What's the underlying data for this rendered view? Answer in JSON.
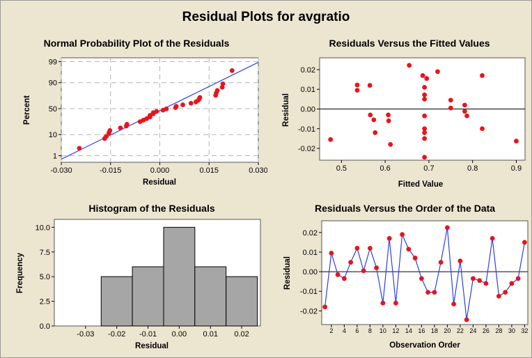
{
  "figure": {
    "title": "Residual Plots for avgratio"
  },
  "chart_data": [
    {
      "type": "scatter",
      "title": "Normal Probability Plot of the Residuals",
      "xlabel": "Residual",
      "ylabel": "Percent",
      "xlim": [
        -0.03,
        0.03
      ],
      "xticks": [
        "-0.030",
        "-0.015",
        "0.000",
        "0.015",
        "0.030"
      ],
      "xtick_values": [
        -0.03,
        -0.015,
        0,
        0.015,
        0.03
      ],
      "yticks": [
        "1",
        "10",
        "50",
        "90",
        "99"
      ],
      "ytick_values": [
        1,
        10,
        50,
        90,
        99
      ],
      "grid": true,
      "fit_line_color": "#2e3ee8",
      "point_color": "#e8141c",
      "points": [
        {
          "x": -0.0245,
          "p": 2.5
        },
        {
          "x": -0.0168,
          "p": 7.0
        },
        {
          "x": -0.0163,
          "p": 8.5
        },
        {
          "x": -0.0155,
          "p": 11.5
        },
        {
          "x": -0.0152,
          "p": 14.0
        },
        {
          "x": -0.012,
          "p": 17.0
        },
        {
          "x": -0.0102,
          "p": 19.5
        },
        {
          "x": -0.01,
          "p": 22.0
        },
        {
          "x": -0.006,
          "p": 26.0
        },
        {
          "x": -0.005,
          "p": 28.5
        },
        {
          "x": -0.004,
          "p": 31.0
        },
        {
          "x": -0.003,
          "p": 34.0
        },
        {
          "x": -0.003,
          "p": 37.0
        },
        {
          "x": -0.002,
          "p": 40.0
        },
        {
          "x": -0.002,
          "p": 42.0
        },
        {
          "x": -0.001,
          "p": 44.5
        },
        {
          "x": 0.001,
          "p": 47.0
        },
        {
          "x": 0.002,
          "p": 49.5
        },
        {
          "x": 0.0048,
          "p": 52.0
        },
        {
          "x": 0.005,
          "p": 54.5
        },
        {
          "x": 0.007,
          "p": 57.5
        },
        {
          "x": 0.0095,
          "p": 60.5
        },
        {
          "x": 0.011,
          "p": 63.0
        },
        {
          "x": 0.0117,
          "p": 66.0
        },
        {
          "x": 0.012,
          "p": 68.5
        },
        {
          "x": 0.0122,
          "p": 71.0
        },
        {
          "x": 0.017,
          "p": 74.5
        },
        {
          "x": 0.0172,
          "p": 78.0
        },
        {
          "x": 0.0175,
          "p": 81.5
        },
        {
          "x": 0.019,
          "p": 85.5
        },
        {
          "x": 0.0192,
          "p": 89.0
        },
        {
          "x": 0.022,
          "p": 97.0
        }
      ]
    },
    {
      "type": "scatter",
      "title": "Residuals Versus the Fitted Values",
      "xlabel": "Fitted Value",
      "ylabel": "Residual",
      "xlim": [
        0.45,
        0.92
      ],
      "ylim": [
        -0.026,
        0.026
      ],
      "xticks": [
        "0.5",
        "0.6",
        "0.7",
        "0.8",
        "0.9"
      ],
      "xtick_values": [
        0.5,
        0.6,
        0.7,
        0.8,
        0.9
      ],
      "yticks": [
        "0.02",
        "0.01",
        "0.00",
        "-0.01",
        "-0.02"
      ],
      "ytick_values": [
        0.02,
        0.01,
        0,
        -0.01,
        -0.02
      ],
      "reference_line": 0,
      "point_color": "#e8141c",
      "points": [
        {
          "x": 0.475,
          "y": -0.0155
        },
        {
          "x": 0.536,
          "y": 0.0122
        },
        {
          "x": 0.536,
          "y": 0.0095
        },
        {
          "x": 0.565,
          "y": 0.012
        },
        {
          "x": 0.566,
          "y": -0.003
        },
        {
          "x": 0.574,
          "y": -0.0055
        },
        {
          "x": 0.577,
          "y": -0.012
        },
        {
          "x": 0.607,
          "y": -0.003
        },
        {
          "x": 0.608,
          "y": -0.006
        },
        {
          "x": 0.612,
          "y": -0.018
        },
        {
          "x": 0.655,
          "y": 0.0222
        },
        {
          "x": 0.686,
          "y": 0.017
        },
        {
          "x": 0.69,
          "y": 0.011
        },
        {
          "x": 0.69,
          "y": 0.0072
        },
        {
          "x": 0.69,
          "y": 0.005
        },
        {
          "x": 0.69,
          "y": -0.0035
        },
        {
          "x": 0.69,
          "y": -0.01
        },
        {
          "x": 0.69,
          "y": -0.012
        },
        {
          "x": 0.69,
          "y": -0.015
        },
        {
          "x": 0.69,
          "y": -0.0245
        },
        {
          "x": 0.695,
          "y": 0.0155
        },
        {
          "x": 0.72,
          "y": 0.019
        },
        {
          "x": 0.75,
          "y": 0.0045
        },
        {
          "x": 0.75,
          "y": 0.0005
        },
        {
          "x": 0.782,
          "y": 0.002
        },
        {
          "x": 0.782,
          "y": -0.0012
        },
        {
          "x": 0.787,
          "y": -0.0035
        },
        {
          "x": 0.822,
          "y": 0.017
        },
        {
          "x": 0.822,
          "y": -0.01
        },
        {
          "x": 0.9,
          "y": -0.0163
        }
      ]
    },
    {
      "type": "bar",
      "title": "Histogram of the Residuals",
      "xlabel": "Residual",
      "ylabel": "Frequency",
      "xlim": [
        -0.04,
        0.026
      ],
      "ylim": [
        0,
        10.8
      ],
      "xticks": [
        "-0.03",
        "-0.02",
        "-0.01",
        "0.00",
        "0.01",
        "0.02"
      ],
      "xtick_values": [
        -0.03,
        -0.02,
        -0.01,
        0,
        0.01,
        0.02
      ],
      "yticks": [
        "10.0",
        "7.5",
        "5.0",
        "2.5",
        "0.0"
      ],
      "ytick_values": [
        10,
        7.5,
        5,
        2.5,
        0
      ],
      "bar_color": "#a6a6a6",
      "bins": [
        {
          "from": -0.025,
          "to": -0.015,
          "count": 5
        },
        {
          "from": -0.015,
          "to": -0.005,
          "count": 6
        },
        {
          "from": -0.005,
          "to": 0.005,
          "count": 10
        },
        {
          "from": 0.005,
          "to": 0.015,
          "count": 6
        },
        {
          "from": 0.015,
          "to": 0.025,
          "count": 5
        }
      ]
    },
    {
      "type": "line",
      "title": "Residuals Versus the Order of the Data",
      "xlabel": "Observation Order",
      "ylabel": "Residual",
      "xlim": [
        0.5,
        32.5
      ],
      "ylim": [
        -0.027,
        0.026
      ],
      "xticks": [
        "2",
        "4",
        "6",
        "8",
        "10",
        "12",
        "14",
        "16",
        "18",
        "20",
        "22",
        "24",
        "26",
        "28",
        "30",
        "32"
      ],
      "xtick_values": [
        2,
        4,
        6,
        8,
        10,
        12,
        14,
        16,
        18,
        20,
        22,
        24,
        26,
        28,
        30,
        32
      ],
      "yticks": [
        "0.02",
        "0.01",
        "0.00",
        "-0.01",
        "-0.02"
      ],
      "ytick_values": [
        0.02,
        0.01,
        0,
        -0.01,
        -0.02
      ],
      "reference_line": 0,
      "line_color": "#2e3ee8",
      "point_color": "#e8141c",
      "x": [
        1,
        2,
        3,
        4,
        5,
        6,
        7,
        8,
        9,
        10,
        11,
        12,
        13,
        14,
        15,
        16,
        17,
        18,
        19,
        20,
        21,
        22,
        23,
        24,
        25,
        26,
        27,
        28,
        29,
        30,
        31,
        32
      ],
      "values": [
        -0.018,
        0.0095,
        -0.0015,
        -0.0035,
        0.0048,
        0.012,
        0.0005,
        0.012,
        0.002,
        -0.016,
        0.017,
        -0.016,
        0.019,
        0.0115,
        0.007,
        -0.0035,
        -0.0105,
        -0.0105,
        0.0048,
        0.0225,
        -0.0165,
        0.0055,
        -0.0245,
        -0.0035,
        -0.0045,
        -0.006,
        0.017,
        -0.0125,
        -0.0105,
        -0.006,
        -0.0035,
        0.015
      ]
    }
  ]
}
